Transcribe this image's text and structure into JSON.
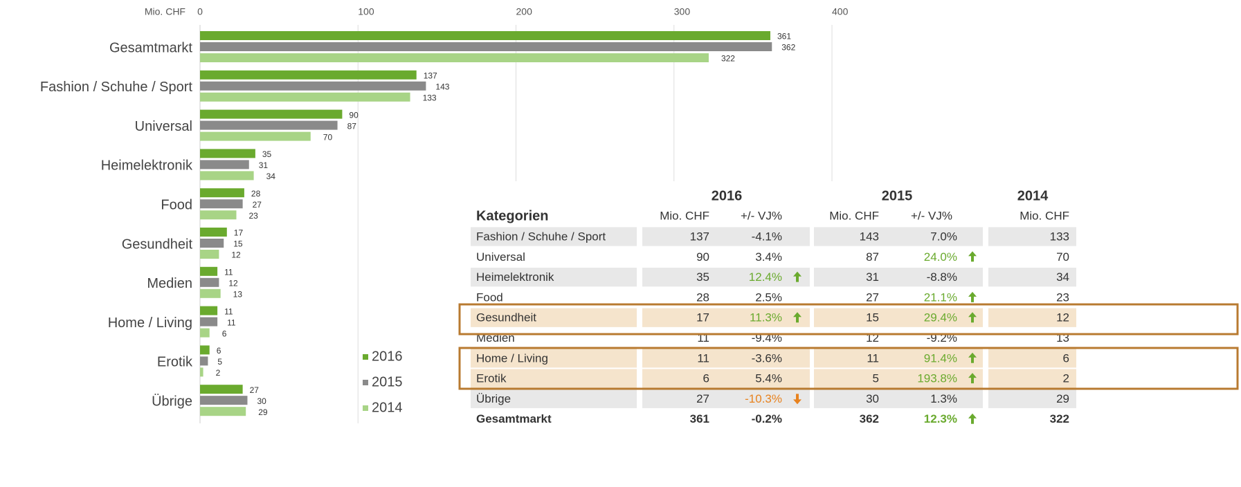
{
  "chart_data": {
    "type": "bar",
    "orientation": "horizontal",
    "x_label": "Mio. CHF",
    "categories": [
      "Gesamtmarkt",
      "Fashion / Schuhe / Sport",
      "Universal",
      "Heimelektronik",
      "Food",
      "Gesundheit",
      "Medien",
      "Home / Living",
      "Erotik",
      "Übrige"
    ],
    "series": [
      {
        "name": "2016",
        "color": "#6aaa2e",
        "values": [
          361,
          137,
          90,
          35,
          28,
          17,
          11,
          11,
          6,
          27
        ]
      },
      {
        "name": "2015",
        "color": "#8a8a8a",
        "values": [
          362,
          143,
          87,
          31,
          27,
          15,
          12,
          11,
          5,
          30
        ]
      },
      {
        "name": "2014",
        "color": "#a8d486",
        "values": [
          322,
          133,
          70,
          34,
          23,
          12,
          13,
          6,
          2,
          29
        ]
      }
    ],
    "xlim": [
      0,
      400
    ],
    "xticks": [
      0,
      100,
      200,
      300,
      400
    ],
    "grid": true
  },
  "table": {
    "year_headers": [
      "2016",
      "2015",
      "2014"
    ],
    "columns": [
      "Kategorien",
      "Mio. CHF",
      "+/- VJ%",
      "Mio. CHF",
      "+/- VJ%",
      "Mio. CHF"
    ],
    "rows": [
      [
        "Fashion / Schuhe / Sport",
        "137",
        "-4.1%",
        "143",
        "7.0%",
        "133"
      ],
      [
        "Universal",
        "90",
        "3.4%",
        "87",
        "24.0%",
        "70"
      ],
      [
        "Heimelektronik",
        "35",
        "12.4%",
        "31",
        "-8.8%",
        "34"
      ],
      [
        "Food",
        "28",
        "2.5%",
        "27",
        "21.1%",
        "23"
      ],
      [
        "Gesundheit",
        "17",
        "11.3%",
        "15",
        "29.4%",
        "12"
      ],
      [
        "Medien",
        "11",
        "-9.4%",
        "12",
        "-9.2%",
        "13"
      ],
      [
        "Home / Living",
        "11",
        "-3.6%",
        "11",
        "91.4%",
        "6"
      ],
      [
        "Erotik",
        "6",
        "5.4%",
        "5",
        "193.8%",
        "2"
      ],
      [
        "Übrige",
        "27",
        "-10.3%",
        "30",
        "1.3%",
        "29"
      ],
      [
        "Gesamtmarkt",
        "361",
        "-0.2%",
        "362",
        "12.3%",
        "322"
      ]
    ]
  }
}
